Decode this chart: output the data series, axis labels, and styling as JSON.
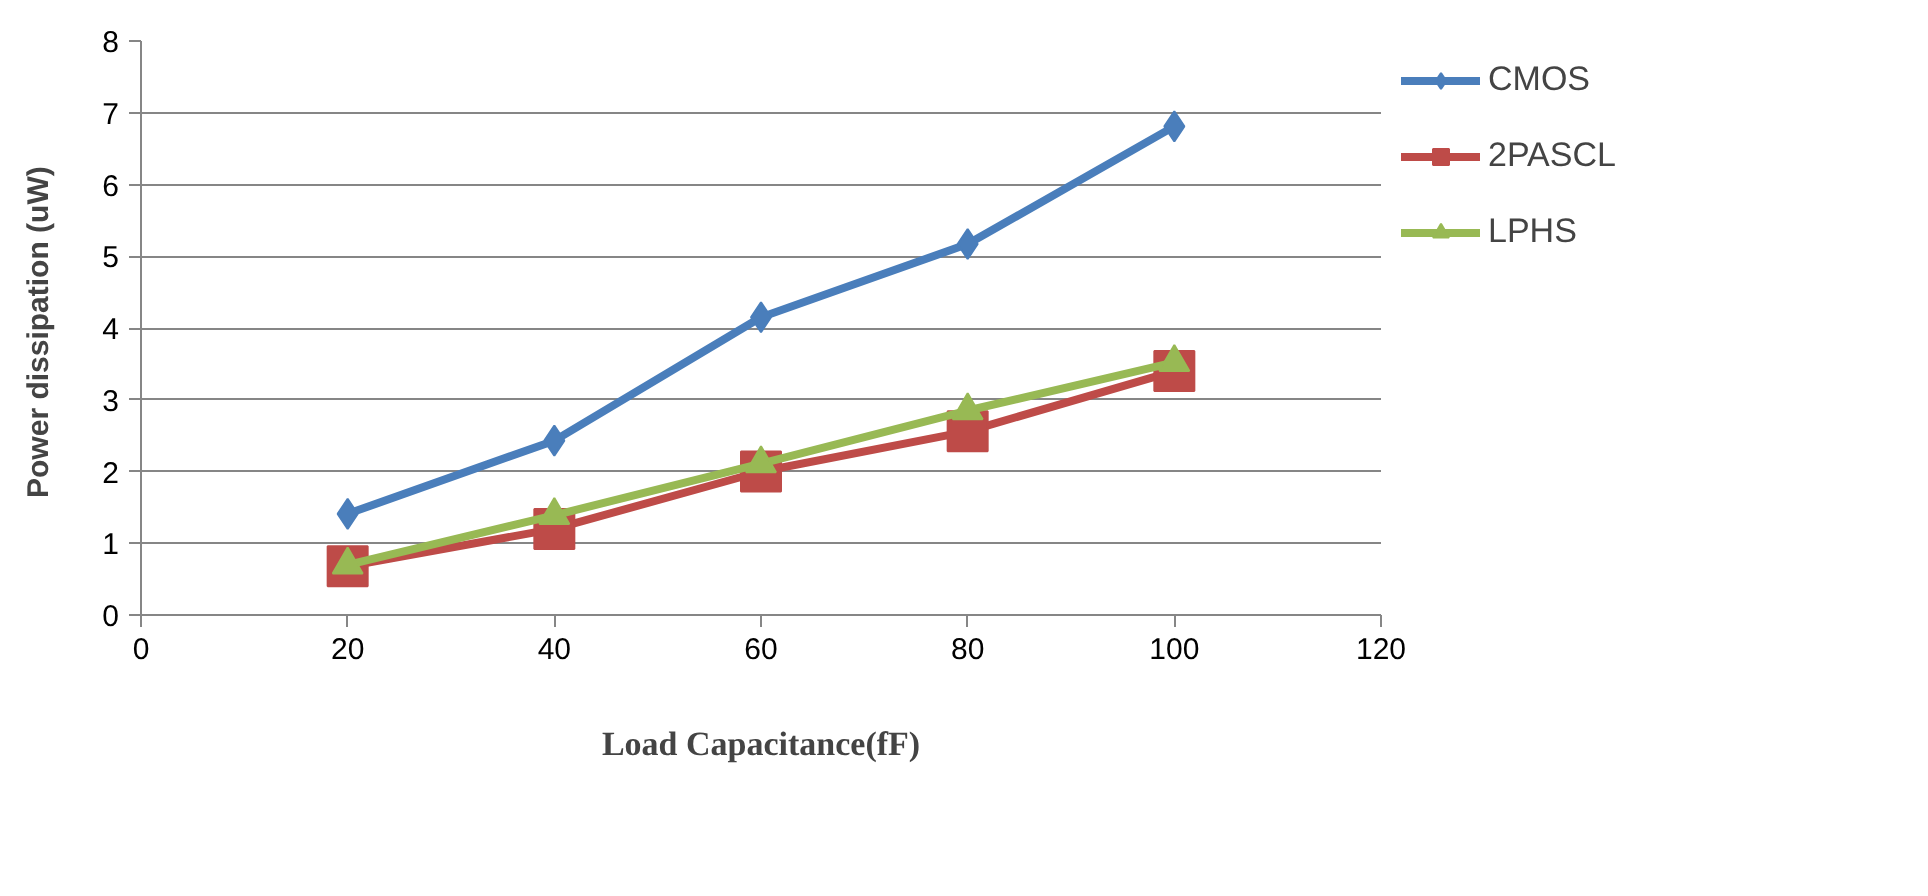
{
  "chart_data": {
    "type": "line",
    "xlabel": "Load Capacitance(fF)",
    "ylabel": "Power dissipation  (uW)",
    "x": [
      20,
      40,
      60,
      80,
      100
    ],
    "series": [
      {
        "name": "CMOS",
        "color": "#4a7ebb",
        "marker": "diamond",
        "values": [
          1.41,
          2.43,
          4.15,
          5.17,
          6.81
        ]
      },
      {
        "name": "2PASCL",
        "color": "#be4b48",
        "marker": "square",
        "values": [
          0.68,
          1.2,
          2.0,
          2.56,
          3.4
        ]
      },
      {
        "name": "LPHS",
        "color": "#98b954",
        "marker": "triangle",
        "values": [
          0.7,
          1.39,
          2.11,
          2.85,
          3.52
        ]
      }
    ],
    "xlim": [
      0,
      120
    ],
    "xticks": [
      0,
      20,
      40,
      60,
      80,
      100,
      120
    ],
    "ylim": [
      0,
      8
    ],
    "yticks": [
      0,
      1,
      2,
      3,
      4,
      5,
      6,
      7,
      8
    ],
    "grid": "y",
    "legend": "right",
    "line_style": "solid"
  }
}
